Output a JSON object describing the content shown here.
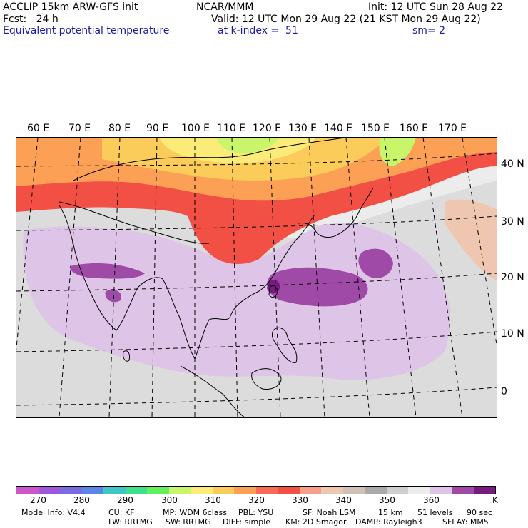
{
  "header": {
    "line1_left": "ACCLIP 15km ARW-GFS init",
    "line1_center": "NCAR/MMM",
    "line1_right": "Init: 12 UTC Sun 28 Aug 22",
    "line2_left": "Fcst:   24 h",
    "line2_right": "Valid: 12 UTC Mon 29 Aug 22 (21 KST Mon 29 Aug 22)",
    "line3_left": "Equivalent potential temperature",
    "line3_center": "at k-index =  51",
    "line3_right": "sm= 2"
  },
  "map": {
    "lon_labels": [
      "60 E",
      "70 E",
      "80 E",
      "90 E",
      "100 E",
      "110 E",
      "120 E",
      "130 E",
      "140 E",
      "150 E",
      "160 E",
      "170 E"
    ],
    "lat_labels": [
      "40 N",
      "30 N",
      "20 N",
      "10 N",
      "0"
    ]
  },
  "colorbar": {
    "colors": [
      "#cc55cc",
      "#a055dd",
      "#7b6be0",
      "#5a86ea",
      "#3ec6c6",
      "#3ee08a",
      "#5ff05a",
      "#c8f56a",
      "#fbeb78",
      "#fbcc5a",
      "#fba055",
      "#fb6a55",
      "#f25045",
      "#f6a08a",
      "#efc6b0",
      "#cfc1b5",
      "#a9a9a9",
      "#cfcfcf",
      "#ececec",
      "#dec4e6",
      "#a04aa8",
      "#7a1a80"
    ],
    "labels": [
      "270",
      "280",
      "290",
      "300",
      "310",
      "320",
      "330",
      "340",
      "350",
      "360"
    ],
    "unit": "K"
  },
  "footer": {
    "line1": [
      "Model Info: V4.4",
      "CU: KF",
      "MP: WDM 6class",
      "PBL: YSU",
      "SF: Noah LSM",
      "15 km",
      "51 levels",
      "90 sec"
    ],
    "line2": [
      "LW: RRTMG",
      "SW: RRTMG",
      "DIFF: simple",
      "KM: 2D Smagor",
      "DAMP: Rayleigh3",
      "SFLAY: MM5"
    ]
  }
}
